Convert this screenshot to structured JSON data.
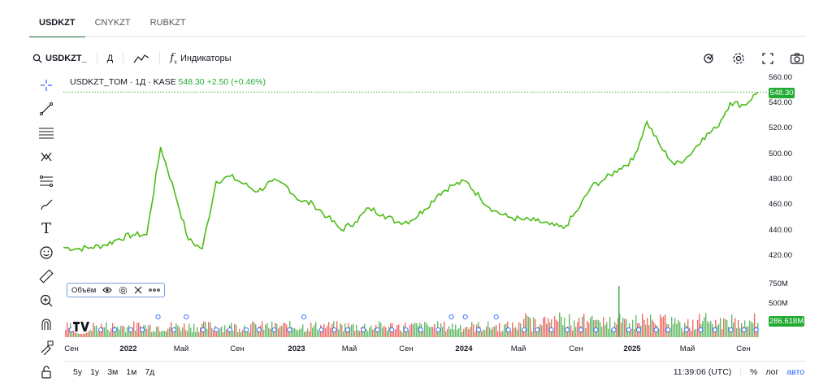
{
  "tabs": [
    {
      "label": "USDKZT",
      "active": true
    },
    {
      "label": "CNYKZT",
      "active": false
    },
    {
      "label": "RUBKZT",
      "active": false
    }
  ],
  "toolbar": {
    "symbol": "USDKZT_",
    "interval": "Д",
    "indicators_label": "Индикаторы",
    "right_icons": [
      "replay-icon",
      "settings-icon",
      "fullscreen-icon",
      "camera-icon"
    ]
  },
  "left_tools": [
    "crosshair-icon",
    "trend-line-icon",
    "fib-lines-icon",
    "pattern-icon",
    "channel-icon",
    "brush-icon",
    "text-icon",
    "emoji-icon",
    "ruler-icon",
    "zoom-in-icon",
    "magnet-icon",
    "lock-draw-icon",
    "unlock-icon"
  ],
  "legend": {
    "title": "USDKZT_TOM · 1Д · KASE",
    "last": "548.30",
    "change": "+2.50 (+0.46%)"
  },
  "volume_legend": {
    "label": "Объём"
  },
  "price_axis": {
    "ticks": [
      "560.00",
      "540.00",
      "520.00",
      "500.00",
      "480.00",
      "460.00",
      "440.00",
      "420.00"
    ],
    "current": "548.30"
  },
  "volume_axis": {
    "ticks": [
      "750M",
      "500M"
    ],
    "current": "286.618M"
  },
  "x_axis": [
    "Сен",
    "2022",
    "Май",
    "Сен",
    "2023",
    "Май",
    "Сен",
    "2024",
    "Май",
    "Сен",
    "2025",
    "Май",
    "Сен"
  ],
  "ranges": [
    "5y",
    "1y",
    "3м",
    "1м",
    "7д"
  ],
  "footer": {
    "time": "11:39:06 (UTC)",
    "percent": "%",
    "log": "лог",
    "auto": "авто"
  },
  "colors": {
    "accent": "#22ab32",
    "up": "#4caf50",
    "down": "#ef5350",
    "line": "#4cbb17"
  },
  "chart_data": {
    "type": "line",
    "series": [
      {
        "name": "USDKZT_TOM",
        "x": [
          "2021-08",
          "2021-09",
          "2021-10",
          "2021-11",
          "2021-12",
          "2022-01",
          "2022-02",
          "2022-03",
          "2022-04",
          "2022-05",
          "2022-06",
          "2022-07",
          "2022-08",
          "2022-09",
          "2022-10",
          "2022-11",
          "2022-12",
          "2023-01",
          "2023-02",
          "2023-03",
          "2023-04",
          "2023-05",
          "2023-06",
          "2023-07",
          "2023-08",
          "2023-09",
          "2023-10",
          "2023-11",
          "2023-12",
          "2024-01",
          "2024-02",
          "2024-03",
          "2024-04",
          "2024-05",
          "2024-06",
          "2024-07",
          "2024-08",
          "2024-09",
          "2024-10",
          "2024-11",
          "2024-12",
          "2025-01",
          "2025-02",
          "2025-03",
          "2025-04",
          "2025-05",
          "2025-06",
          "2025-07",
          "2025-08",
          "2025-09",
          "2025-10"
        ],
        "values": [
          426,
          425,
          426,
          428,
          433,
          436,
          436,
          505,
          470,
          432,
          425,
          478,
          482,
          476,
          470,
          478,
          475,
          463,
          460,
          450,
          440,
          446,
          457,
          452,
          446,
          447,
          456,
          468,
          475,
          478,
          465,
          455,
          450,
          448,
          447,
          444,
          441,
          455,
          474,
          480,
          488,
          495,
          525,
          505,
          491,
          498,
          512,
          520,
          540,
          538,
          548.3
        ]
      }
    ],
    "ylim": [
      410,
      562
    ],
    "grid": false,
    "legend": "top-left"
  }
}
